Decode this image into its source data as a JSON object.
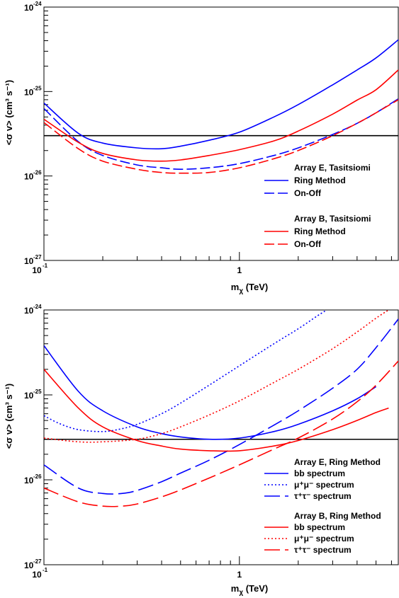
{
  "chart_data": [
    {
      "type": "line",
      "xlabel": "m_χ (TeV)",
      "ylabel": "<σ v> (cm³ s⁻¹)",
      "x_scale": "log",
      "y_scale": "log",
      "xlim": [
        0.1,
        6.5
      ],
      "ylim": [
        1e-27,
        1e-24
      ],
      "x_tick_labels": [
        "10⁻¹",
        "1"
      ],
      "y_tick_labels": [
        "10⁻²⁷",
        "10⁻²⁶",
        "10⁻²⁵",
        "10⁻²⁴"
      ],
      "reference_line": 3e-26,
      "legend_groups": [
        {
          "header": "Array E, Tasitsiomi",
          "entries": [
            "Ring Method",
            "On-Off"
          ]
        },
        {
          "header": "Array B, Tasitsiomi",
          "entries": [
            "Ring Method",
            "On-Off"
          ]
        }
      ],
      "series": [
        {
          "name": "Ring Method",
          "group": "Array E, Tasitsiomi",
          "color": "#0000ff",
          "dash": "solid",
          "x": [
            0.1,
            0.15,
            0.2,
            0.3,
            0.4,
            0.5,
            0.7,
            1.0,
            1.5,
            2.0,
            3.0,
            4.0,
            5.0,
            6.5
          ],
          "y": [
            7.3e-26,
            3.2e-26,
            2.45e-26,
            2.15e-26,
            2.1e-26,
            2.25e-26,
            2.65e-26,
            3.3e-26,
            5e-26,
            7e-26,
            1.2e-25,
            1.8e-25,
            2.5e-25,
            4.1e-25
          ]
        },
        {
          "name": "On-Off",
          "group": "Array E, Tasitsiomi",
          "color": "#0000ff",
          "dash": "dashed",
          "x": [
            0.1,
            0.15,
            0.2,
            0.3,
            0.4,
            0.5,
            0.7,
            1.0,
            1.5,
            2.0,
            3.0,
            4.0,
            5.0,
            6.5
          ],
          "y": [
            6.3e-26,
            2.55e-26,
            1.75e-26,
            1.35e-26,
            1.25e-26,
            1.2e-26,
            1.25e-26,
            1.4e-26,
            1.75e-26,
            2.15e-26,
            3.1e-26,
            4.2e-26,
            5.6e-26,
            8.2e-26
          ]
        },
        {
          "name": "Ring Method",
          "group": "Array B, Tasitsiomi",
          "color": "#ff0000",
          "dash": "solid",
          "x": [
            0.1,
            0.15,
            0.2,
            0.3,
            0.4,
            0.5,
            0.7,
            1.0,
            1.5,
            2.0,
            3.0,
            4.0,
            5.0,
            6.5
          ],
          "y": [
            4.7e-26,
            2.5e-26,
            1.85e-26,
            1.55e-26,
            1.5e-26,
            1.55e-26,
            1.75e-26,
            2.05e-26,
            2.6e-26,
            3.4e-26,
            5.4e-26,
            7.9e-26,
            1.05e-25,
            1.8e-25
          ]
        },
        {
          "name": "On-Off",
          "group": "Array B, Tasitsiomi",
          "color": "#ff0000",
          "dash": "dashed",
          "x": [
            0.1,
            0.15,
            0.2,
            0.3,
            0.4,
            0.5,
            0.7,
            1.0,
            1.5,
            2.0,
            3.0,
            4.0,
            5.0,
            6.5
          ],
          "y": [
            4.3e-26,
            2.1e-26,
            1.5e-26,
            1.2e-26,
            1.1e-26,
            1.08e-26,
            1.1e-26,
            1.25e-26,
            1.6e-26,
            2e-26,
            3e-26,
            4.2e-26,
            5.6e-26,
            8e-26
          ]
        }
      ]
    },
    {
      "type": "line",
      "xlabel": "m_χ (TeV)",
      "ylabel": "<σ v> (cm³ s⁻¹)",
      "x_scale": "log",
      "y_scale": "log",
      "xlim": [
        0.1,
        6.5
      ],
      "ylim": [
        1e-27,
        1e-24
      ],
      "x_tick_labels": [
        "10⁻¹",
        "1"
      ],
      "y_tick_labels": [
        "10⁻²⁷",
        "10⁻²⁶",
        "10⁻²⁵",
        "10⁻²⁴"
      ],
      "reference_line": 3e-26,
      "legend_groups": [
        {
          "header": "Array E, Ring Method",
          "entries": [
            "bb spectrum",
            "μ⁺μ⁻ spectrum",
            "τ⁺τ⁻ spectrum"
          ]
        },
        {
          "header": "Array B, Ring Method",
          "entries": [
            "bb spectrum",
            "μ⁺μ⁻ spectrum",
            "τ⁺τ⁻ spectrum"
          ]
        }
      ],
      "series": [
        {
          "name": "bb spectrum",
          "group": "Array E, Ring Method",
          "color": "#0000ff",
          "dash": "solid",
          "x": [
            0.1,
            0.15,
            0.2,
            0.3,
            0.4,
            0.5,
            0.7,
            1.0,
            1.5,
            2.0,
            3.0,
            4.0,
            5.0
          ],
          "y": [
            3.8e-25,
            1.1e-25,
            6.5e-26,
            4.2e-26,
            3.5e-26,
            3.2e-26,
            3e-26,
            3.1e-26,
            3.7e-26,
            4.5e-26,
            6.5e-26,
            9e-26,
            1.25e-25
          ]
        },
        {
          "name": "μ⁺μ⁻ spectrum",
          "group": "Array E, Ring Method",
          "color": "#0000ff",
          "dash": "dotted",
          "x": [
            0.1,
            0.12,
            0.15,
            0.2,
            0.25,
            0.3,
            0.4,
            0.5,
            0.7,
            1.0,
            1.5,
            2.0,
            2.5,
            2.8
          ],
          "y": [
            5.7e-26,
            4.6e-26,
            3.9e-26,
            3.7e-26,
            4e-26,
            4.5e-26,
            6e-26,
            8e-26,
            1.3e-25,
            2.2e-25,
            4e-25,
            6e-25,
            8.5e-25,
            1e-24
          ]
        },
        {
          "name": "τ⁺τ⁻ spectrum",
          "group": "Array E, Ring Method",
          "color": "#0000ff",
          "dash": "longdash",
          "x": [
            0.1,
            0.15,
            0.2,
            0.25,
            0.3,
            0.4,
            0.5,
            0.7,
            1.0,
            1.5,
            2.0,
            3.0,
            4.0,
            5.0,
            6.5
          ],
          "y": [
            1.5e-26,
            8e-27,
            6.9e-27,
            6.9e-27,
            7.5e-27,
            9.5e-27,
            1.2e-26,
            1.7e-26,
            2.6e-26,
            4.4e-26,
            6.5e-26,
            1.2e-25,
            2e-25,
            3.6e-25,
            7.8e-25
          ]
        },
        {
          "name": "bb spectrum",
          "group": "Array B, Ring Method",
          "color": "#ff0000",
          "dash": "solid",
          "x": [
            0.1,
            0.15,
            0.2,
            0.3,
            0.4,
            0.5,
            0.7,
            1.0,
            1.5,
            2.0,
            3.0,
            4.0,
            5.0,
            5.8
          ],
          "y": [
            2e-25,
            7e-26,
            4.2e-26,
            2.9e-26,
            2.5e-26,
            2.3e-26,
            2.2e-26,
            2.2e-26,
            2.5e-26,
            2.9e-26,
            3.9e-26,
            5e-26,
            6.2e-26,
            7e-26
          ]
        },
        {
          "name": "μ⁺μ⁻ spectrum",
          "group": "Array B, Ring Method",
          "color": "#ff0000",
          "dash": "dotted",
          "x": [
            0.1,
            0.15,
            0.2,
            0.3,
            0.4,
            0.5,
            0.7,
            1.0,
            1.5,
            2.0,
            3.0,
            4.0,
            5.0,
            5.8
          ],
          "y": [
            3.1e-26,
            2.8e-26,
            2.8e-26,
            3e-26,
            3.5e-26,
            4.2e-26,
            5.8e-26,
            8.5e-26,
            1.4e-25,
            2e-25,
            3.5e-25,
            5.5e-25,
            8e-25,
            1e-24
          ]
        },
        {
          "name": "τ⁺τ⁻ spectrum",
          "group": "Array B, Ring Method",
          "color": "#ff0000",
          "dash": "longdash",
          "x": [
            0.1,
            0.15,
            0.2,
            0.25,
            0.3,
            0.4,
            0.5,
            0.7,
            1.0,
            1.5,
            2.0,
            3.0,
            4.0,
            5.0,
            6.5
          ],
          "y": [
            8e-27,
            5.5e-27,
            4.9e-27,
            4.9e-27,
            5.2e-27,
            6.3e-27,
            7.6e-27,
            1.05e-26,
            1.5e-26,
            2.3e-26,
            3.1e-26,
            5.2e-26,
            8.3e-26,
            1.3e-25,
            2.5e-25
          ]
        }
      ]
    }
  ]
}
